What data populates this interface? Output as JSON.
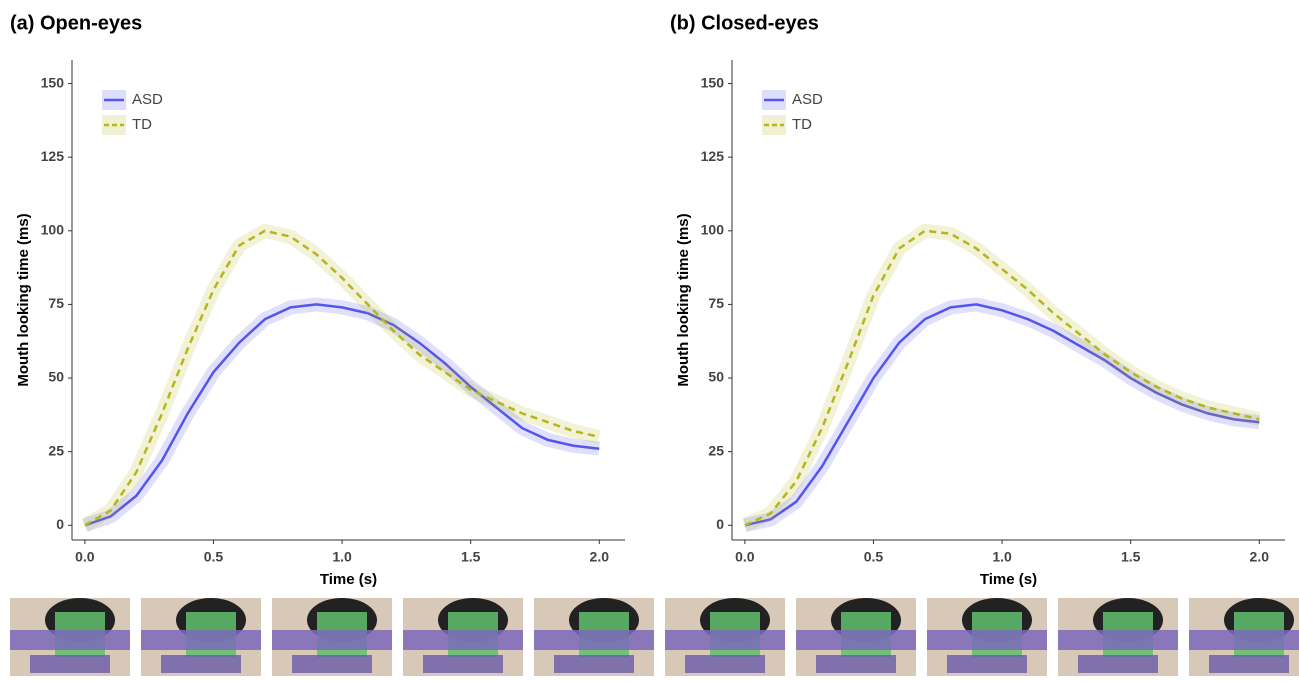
{
  "chart_data": [
    {
      "type": "line",
      "title": "(a) Open-eyes",
      "x_label": "Time (s)",
      "y_label": "Mouth looking time (ms)",
      "x": [
        0,
        0.1,
        0.2,
        0.3,
        0.4,
        0.5,
        0.6,
        0.7,
        0.8,
        0.9,
        1.0,
        1.1,
        1.2,
        1.3,
        1.4,
        1.5,
        1.6,
        1.7,
        1.8,
        1.9,
        2.0
      ],
      "series": [
        {
          "name": "ASD",
          "color": "#5555ee",
          "dashed": false,
          "values": [
            0,
            3,
            10,
            22,
            38,
            52,
            62,
            70,
            74,
            75,
            74,
            72,
            68,
            62,
            55,
            47,
            40,
            33,
            29,
            27,
            26
          ]
        },
        {
          "name": "TD",
          "color": "#b5b51e",
          "dashed": true,
          "values": [
            0,
            5,
            18,
            38,
            60,
            80,
            95,
            100,
            98,
            92,
            84,
            75,
            66,
            58,
            52,
            46,
            42,
            38,
            35,
            32,
            30
          ]
        }
      ],
      "xlim": [
        -0.05,
        2.1
      ],
      "ylim": [
        -5,
        158
      ],
      "xticks": [
        {
          "value": 0,
          "label": "0.0"
        },
        0.5,
        {
          "value": 1,
          "label": "1.0"
        },
        1.5,
        {
          "value": 2,
          "label": "2.0"
        }
      ],
      "yticks": [
        0,
        25,
        50,
        75,
        100,
        125,
        150
      ]
    },
    {
      "type": "line",
      "title": "(b) Closed-eyes",
      "x_label": "Time (s)",
      "y_label": "Mouth looking time (ms)",
      "x": [
        0,
        0.1,
        0.2,
        0.3,
        0.4,
        0.5,
        0.6,
        0.7,
        0.8,
        0.9,
        1.0,
        1.1,
        1.2,
        1.3,
        1.4,
        1.5,
        1.6,
        1.7,
        1.8,
        1.9,
        2.0
      ],
      "series": [
        {
          "name": "ASD",
          "color": "#5555ee",
          "dashed": false,
          "values": [
            0,
            2,
            8,
            20,
            35,
            50,
            62,
            70,
            74,
            75,
            73,
            70,
            66,
            61,
            56,
            50,
            45,
            41,
            38,
            36,
            35
          ]
        },
        {
          "name": "TD",
          "color": "#b5b51e",
          "dashed": true,
          "values": [
            0,
            4,
            15,
            33,
            55,
            78,
            94,
            100,
            99,
            94,
            87,
            80,
            72,
            65,
            58,
            52,
            47,
            43,
            40,
            38,
            36
          ]
        }
      ],
      "xlim": [
        -0.05,
        2.1
      ],
      "ylim": [
        -5,
        158
      ],
      "xticks": [
        {
          "value": 0,
          "label": "0.0"
        },
        0.5,
        {
          "value": 1,
          "label": "1.0"
        },
        1.5,
        {
          "value": 2,
          "label": "2.0"
        }
      ],
      "yticks": [
        0,
        25,
        50,
        75,
        100,
        125,
        150
      ]
    }
  ]
}
